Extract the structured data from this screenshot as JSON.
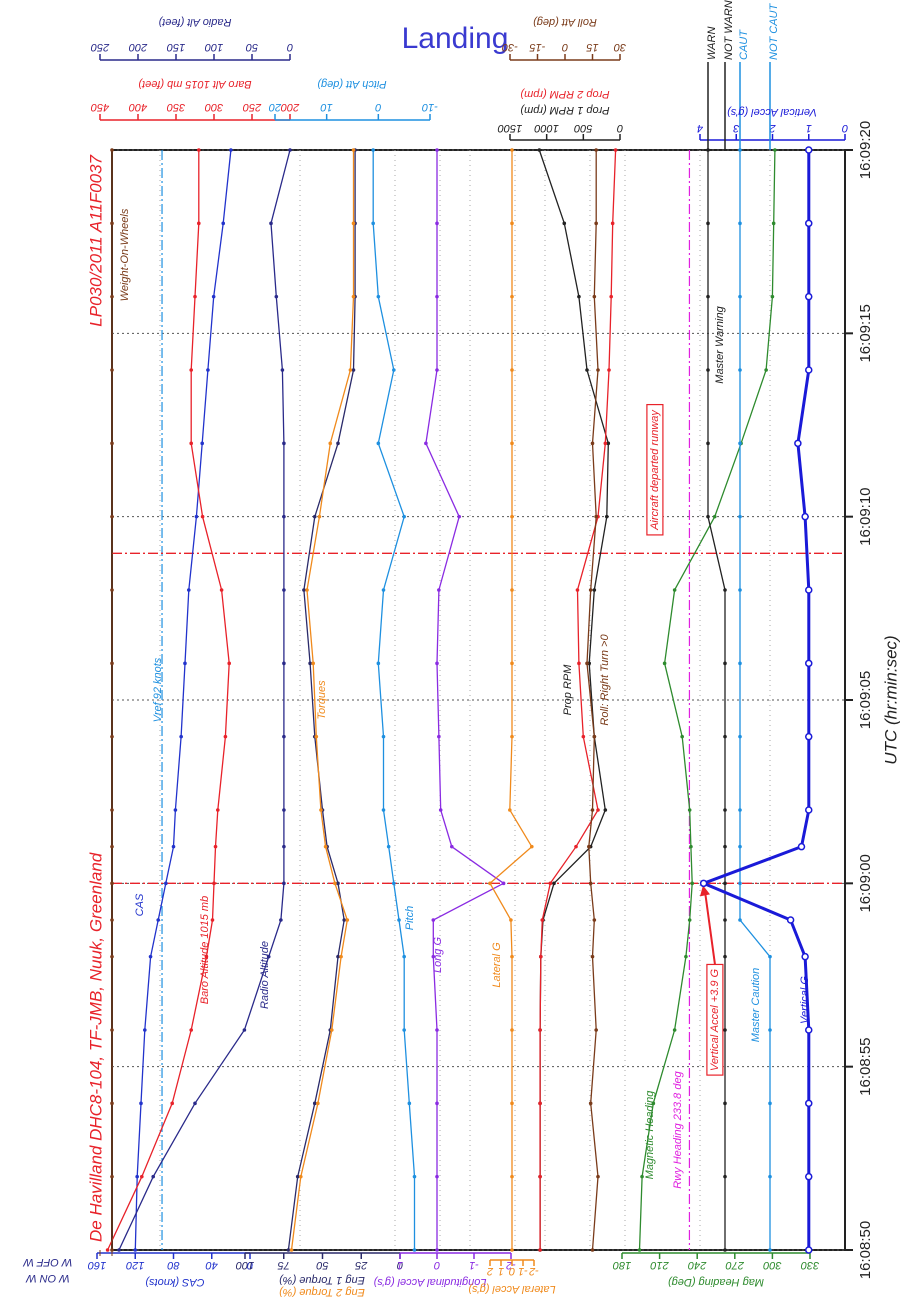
{
  "title": "Landing",
  "subtitle": "De Havilland DHC8-104, TF-JMB, Nuuk, Greenland",
  "report_id": "LP030/2011  A11F0037",
  "chart_data": {
    "type": "line",
    "x_label": "UTC (hr:min:sec)",
    "x": [
      58130,
      58132,
      58134,
      58136,
      58138,
      58139,
      58140,
      58141,
      58142,
      58144,
      58146,
      58148,
      58150,
      58152,
      58154,
      58156,
      58158,
      58160
    ],
    "xlim": [
      58130,
      58160
    ],
    "xticks": [
      {
        "value": 58130,
        "label": "16:08:50"
      },
      {
        "value": 58135,
        "label": "16:08:55"
      },
      {
        "value": 58140,
        "label": "16:09:00"
      },
      {
        "value": 58145,
        "label": "16:09:05"
      },
      {
        "value": 58150,
        "label": "16:09:10"
      },
      {
        "value": 58155,
        "label": "16:09:15"
      },
      {
        "value": 58160,
        "label": "16:09:20"
      }
    ],
    "grid": true,
    "axes": [
      {
        "lim": [
          0,
          160
        ],
        "ticks": [
          0,
          40,
          80,
          120,
          160
        ]
      },
      {
        "lim": [
          0,
          100
        ],
        "ticks": [
          0,
          25,
          50,
          75,
          100
        ]
      },
      {
        "lim": [
          -2,
          1
        ],
        "ticks": [
          -2,
          -1,
          0,
          1
        ]
      },
      {
        "lim": [
          -2,
          2
        ],
        "ticks": [
          -2,
          -1,
          0,
          1,
          2
        ]
      },
      {
        "lim": [
          180,
          330
        ],
        "ticks": [
          180,
          210,
          240,
          270,
          300,
          330
        ]
      },
      {
        "lim": [
          0,
          1
        ],
        "ticks": [
          {
            "value": 0,
            "label": "W OFF W"
          },
          {
            "value": 1,
            "label": "W ON W"
          }
        ]
      },
      {
        "lim": [
          0,
          250
        ],
        "ticks": [
          0,
          50,
          100,
          150,
          200,
          250
        ]
      },
      {
        "lim": [
          200,
          450
        ],
        "ticks": [
          200,
          250,
          300,
          350,
          400,
          450
        ]
      },
      {
        "lim": [
          -10,
          20
        ],
        "ticks": [
          -10,
          0,
          10,
          20
        ]
      },
      {
        "lim": [
          0,
          1500
        ],
        "ticks": [
          0,
          500,
          1000,
          1500
        ]
      },
      {
        "lim": [
          -30,
          30
        ],
        "ticks": [
          -30,
          -15,
          0,
          15,
          30
        ]
      },
      {
        "lim": [
          0,
          4
        ],
        "ticks": [
          0,
          1,
          2,
          3,
          4
        ]
      },
      {
        "lim": [
          0,
          1
        ],
        "ticks": [
          {
            "value": 1,
            "label": "WARN"
          },
          {
            "value": 0,
            "label": "NOT WARN"
          }
        ]
      },
      {
        "lim": [
          0,
          1
        ],
        "ticks": [
          {
            "value": 1,
            "label": "CAUT"
          },
          {
            "value": 0,
            "label": "NOT CAUT"
          }
        ]
      }
    ],
    "series": [
      {
        "name": "CAS",
        "axis_label": "CAS (knots)",
        "axis": 0,
        "color": "#2233cc",
        "values": [
          120,
          118,
          114,
          110,
          104,
          96,
          88,
          80,
          78,
          72,
          68,
          64,
          56,
          50,
          44,
          38,
          28,
          20
        ]
      },
      {
        "name": "Baro Altitude 1015 mb",
        "axis_label": "Baro Alt 1015 mb (feet)",
        "axis": 7,
        "color": "#e8222a",
        "values": [
          440,
          395,
          355,
          330,
          310,
          302,
          300,
          298,
          295,
          285,
          280,
          290,
          315,
          330,
          330,
          325,
          320,
          320
        ]
      },
      {
        "name": "Radio Altitude",
        "axis_label": "Radio Alt (feet)",
        "axis": 6,
        "color": "#2a2a8a",
        "values": [
          225,
          180,
          125,
          60,
          28,
          12,
          8,
          8,
          8,
          8,
          8,
          8,
          8,
          8,
          10,
          18,
          25,
          0
        ]
      },
      {
        "axis_label": "Eng 1 Torque (%)",
        "axis": 1,
        "color": "#2a2a6a",
        "values": [
          72,
          66,
          55,
          45,
          40,
          36,
          40,
          47,
          50,
          55,
          58,
          62,
          55,
          40,
          30,
          29,
          29,
          29
        ]
      },
      {
        "name": "Torques",
        "axis_label": "Eng 2 Torque (%)",
        "axis": 1,
        "color": "#f08a1c",
        "values": [
          70,
          64,
          53,
          44,
          38,
          34,
          42,
          48,
          51,
          54,
          56,
          60,
          52,
          45,
          32,
          30,
          30,
          30
        ]
      },
      {
        "name": "Pitch",
        "axis_label": "Pitch Att (deg)",
        "axis": 8,
        "color": "#1e90e0",
        "values": [
          -7,
          -7,
          -6,
          -5,
          -5,
          -4,
          -3,
          -2,
          -1,
          -1,
          0,
          -1,
          -5,
          0,
          -3,
          0,
          1,
          1
        ]
      },
      {
        "name": "Long G",
        "axis_label": "Longitudinal Accel (g's)",
        "axis": 2,
        "color": "#8a2be2",
        "values": [
          0,
          0,
          0,
          0,
          0.1,
          0.1,
          -1.8,
          -0.4,
          -0.1,
          -0.05,
          0,
          -0.05,
          -0.6,
          0.3,
          0,
          0,
          0,
          0
        ]
      },
      {
        "name": "Lateral G",
        "axis_label": "Lateral Accel (g's)",
        "axis": 3,
        "color": "#f08a1c",
        "values": [
          0,
          0,
          0,
          0,
          0,
          0.1,
          2,
          -1.8,
          0.2,
          0,
          0,
          0,
          0,
          0,
          0,
          0,
          0,
          0
        ]
      },
      {
        "name": "Prop RPM",
        "axis_label": "Prop 1 RPM (rpm)",
        "axis": 9,
        "color": "#222222",
        "values": [
          1090,
          1090,
          1090,
          1090,
          1080,
          1050,
          900,
          400,
          200,
          350,
          420,
          350,
          180,
          160,
          450,
          560,
          760,
          1100
        ]
      },
      {
        "axis_label": "Prop 2 RPM (rpm)",
        "axis": 9,
        "color": "#e8222a",
        "values": [
          1090,
          1090,
          1090,
          1090,
          1080,
          1060,
          950,
          600,
          300,
          500,
          560,
          580,
          300,
          200,
          150,
          120,
          100,
          60
        ]
      },
      {
        "name": "Roll: Right Turn >0",
        "axis_label": "Roll Att (deg)",
        "axis": 10,
        "color": "#7a3b1a",
        "values": [
          15,
          18,
          14,
          17,
          15,
          16,
          14,
          13,
          15,
          16,
          12,
          14,
          17,
          15,
          18,
          16,
          17,
          17
        ]
      },
      {
        "name": "Magnetic Heading",
        "axis_label": "Mag Heading (Deg)",
        "axis": 4,
        "color": "#2e8b2e",
        "values": [
          194,
          196,
          205,
          222,
          231,
          234,
          236,
          235,
          234,
          228,
          214,
          222,
          254,
          275,
          295,
          300,
          301,
          302
        ]
      },
      {
        "name": "Master Warning",
        "axis": 12,
        "color": "#222222",
        "values": [
          0,
          0,
          0,
          0,
          0,
          0,
          0,
          0,
          0,
          0,
          0,
          0,
          1,
          1,
          1,
          1,
          1,
          1
        ]
      },
      {
        "name": "Master Caution",
        "axis": 13,
        "color": "#1e90e0",
        "values": [
          0,
          0,
          0,
          0,
          0,
          1,
          1,
          1,
          1,
          1,
          1,
          1,
          1,
          1,
          1,
          1,
          1,
          1
        ]
      },
      {
        "name": "Vertical G",
        "axis_label": "Vertical Accel (g's)",
        "axis": 11,
        "color": "#1a1ad8",
        "values": [
          1,
          1,
          1,
          1,
          1.1,
          1.5,
          3.9,
          1.2,
          1,
          1,
          1,
          1,
          1.1,
          1.3,
          1,
          1,
          1,
          1
        ]
      },
      {
        "name": "Weight-On-Wheels",
        "axis": 5,
        "color": "#7a3b1a",
        "values": [
          0,
          0,
          0,
          0,
          0,
          0,
          0,
          0,
          0,
          0,
          0,
          0,
          0,
          0,
          0,
          0,
          0,
          0
        ]
      }
    ],
    "reference_lines": [
      {
        "label": "Vref 92 knots",
        "axis": 0,
        "value": 92,
        "color": "#1e90e0"
      },
      {
        "label": "Rwy Heading 233.8 deg",
        "axis": 4,
        "value": 233.8,
        "color": "#e020e0"
      }
    ],
    "events": [
      {
        "x": 58140,
        "label": "Vertical Accel +3.9 G",
        "color": "#e8222a"
      },
      {
        "x": 58149,
        "label": "Aircraft departed runway",
        "color": "#e8222a"
      }
    ]
  }
}
